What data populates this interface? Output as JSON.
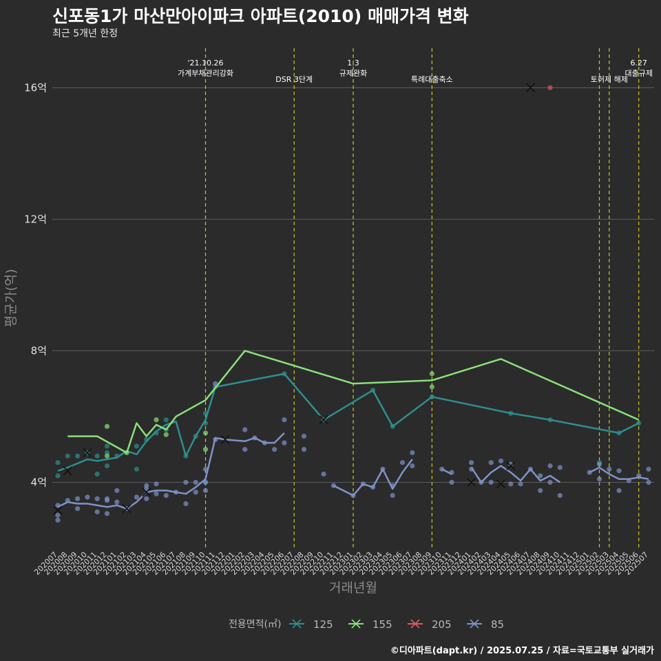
{
  "header": {
    "title": "신포동1가 마산만아이파크 아파트(2010) 매매가격 변화",
    "subtitle": "최근 5개년 한정",
    "caption": "©디아파트(dapt.kr) / 2025.07.25 / 자료=국토교통부 실거래가"
  },
  "colors": {
    "background": "#2b2b2b",
    "grid": "#5c5c5c",
    "vline": "#c8c82a",
    "series_125": "#2f8f8f",
    "series_155": "#8be07a",
    "series_205": "#e05a5a",
    "series_85": "#7f93c9"
  },
  "chart_data": {
    "type": "line",
    "title": "신포동1가 마산만아이파크 아파트(2010) 매매가격 변화",
    "subtitle": "최근 5개년 한정",
    "xlabel": "거래년월",
    "ylabel": "평균가(억)",
    "ylim": [
      2,
      17.2
    ],
    "y_ticks": [
      4,
      8,
      12,
      16
    ],
    "y_tick_labels": [
      "4억",
      "8억",
      "12억",
      "16억"
    ],
    "grid": true,
    "legend_position": "bottom",
    "legend_title": "전용면적(㎡)",
    "months": [
      "202007",
      "202008",
      "202009",
      "202010",
      "202011",
      "202012",
      "202101",
      "202102",
      "202103",
      "202104",
      "202105",
      "202106",
      "202107",
      "202108",
      "202109",
      "202110",
      "202111",
      "202112",
      "202201",
      "202202",
      "202203",
      "202204",
      "202205",
      "202206",
      "202207",
      "202208",
      "202209",
      "202210",
      "202211",
      "202212",
      "202301",
      "202302",
      "202303",
      "202304",
      "202305",
      "202306",
      "202307",
      "202308",
      "202309",
      "202310",
      "202311",
      "202312",
      "202401",
      "202402",
      "202403",
      "202404",
      "202405",
      "202406",
      "202407",
      "202408",
      "202409",
      "202410",
      "202411",
      "202412",
      "202501",
      "202502",
      "202503",
      "202504",
      "202505",
      "202506",
      "202507"
    ],
    "events": [
      {
        "month": "202110",
        "label": "'21.10.26\n가계부채관리강화"
      },
      {
        "month": "202207",
        "label": "DSR 3단계"
      },
      {
        "month": "202301",
        "label": "1.3\n규제완화"
      },
      {
        "month": "202309",
        "label": "특례대출축소"
      },
      {
        "month": "202502",
        "label": ""
      },
      {
        "month": "202503",
        "label": "토허제 해제"
      },
      {
        "month": "202506",
        "label": "6.27\n대출규제"
      }
    ],
    "series": [
      {
        "name": "125",
        "color": "#2f8f8f",
        "line": [
          [
            "202007",
            4.35
          ],
          [
            "202008",
            4.45
          ],
          [
            "202010",
            4.7
          ],
          [
            "202011",
            4.65
          ],
          [
            "202012",
            4.7
          ],
          [
            "202101",
            4.75
          ],
          [
            "202102",
            4.95
          ],
          [
            "202103",
            4.85
          ],
          [
            "202104",
            5.25
          ],
          [
            "202105",
            5.55
          ],
          [
            "202106",
            5.75
          ],
          [
            "202107",
            5.85
          ],
          [
            "202108",
            4.8
          ],
          [
            "202109",
            5.4
          ],
          [
            "202110",
            5.9
          ],
          [
            "202111",
            6.9
          ],
          [
            "202206",
            7.3
          ],
          [
            "202210",
            5.9
          ],
          [
            "202303",
            6.8
          ],
          [
            "202305",
            5.7
          ],
          [
            "202309",
            6.6
          ],
          [
            "202405",
            6.1
          ],
          [
            "202409",
            5.9
          ],
          [
            "202504",
            5.5
          ],
          [
            "202506",
            5.8
          ]
        ],
        "points": [
          [
            "202007",
            4.6
          ],
          [
            "202007",
            4.2
          ],
          [
            "202008",
            4.8
          ],
          [
            "202009",
            4.8
          ],
          [
            "202010",
            4.9
          ],
          [
            "202011",
            4.8
          ],
          [
            "202011",
            4.25
          ],
          [
            "202012",
            4.9
          ],
          [
            "202012",
            4.5
          ],
          [
            "202012",
            5.1
          ],
          [
            "202101",
            4.8
          ],
          [
            "202103",
            4.4
          ],
          [
            "202103",
            5.1
          ],
          [
            "202104",
            5.3
          ],
          [
            "202105",
            5.5
          ],
          [
            "202106",
            5.9
          ],
          [
            "202106",
            5.6
          ],
          [
            "202108",
            4.8
          ],
          [
            "202109",
            5.4
          ],
          [
            "202110",
            5.8
          ],
          [
            "202110",
            6.1
          ],
          [
            "202110",
            4.0
          ],
          [
            "202111",
            6.9
          ],
          [
            "202206",
            7.3
          ],
          [
            "202210",
            5.9
          ],
          [
            "202303",
            6.8
          ],
          [
            "202305",
            5.7
          ],
          [
            "202309",
            6.6
          ],
          [
            "202405",
            6.1
          ],
          [
            "202409",
            5.9
          ],
          [
            "202502",
            4.6
          ],
          [
            "202504",
            5.5
          ],
          [
            "202506",
            5.8
          ]
        ],
        "crosses": [
          [
            "202008",
            4.35
          ],
          [
            "202010",
            4.9
          ],
          [
            "202210",
            5.9
          ]
        ]
      },
      {
        "name": "155",
        "color": "#8be07a",
        "line": [
          [
            "202008",
            5.4
          ],
          [
            "202011",
            5.4
          ],
          [
            "202102",
            4.9
          ],
          [
            "202103",
            5.8
          ],
          [
            "202104",
            5.4
          ],
          [
            "202105",
            5.75
          ],
          [
            "202106",
            5.6
          ],
          [
            "202107",
            6.0
          ],
          [
            "202110",
            6.5
          ],
          [
            "202202",
            8.0
          ],
          [
            "202301",
            7.0
          ],
          [
            "202309",
            7.1
          ],
          [
            "202404",
            7.75
          ],
          [
            "202506",
            5.9
          ]
        ],
        "points": [
          [
            "202012",
            5.7
          ],
          [
            "202012",
            4.8
          ],
          [
            "202102",
            4.9
          ],
          [
            "202105",
            5.9
          ],
          [
            "202106",
            5.45
          ],
          [
            "202110",
            5.5
          ],
          [
            "202110",
            5.0
          ],
          [
            "202309",
            6.9
          ],
          [
            "202309",
            7.3
          ]
        ],
        "crosses": []
      },
      {
        "name": "205",
        "color": "#e05a5a",
        "line": [],
        "points": [
          [
            "202409",
            16.0
          ]
        ],
        "crosses": [
          [
            "202407",
            16.0
          ]
        ]
      },
      {
        "name": "85",
        "color": "#7f93c9",
        "line": [
          [
            "202007",
            3.25
          ],
          [
            "202008",
            3.4
          ],
          [
            "202009",
            3.35
          ],
          [
            "202010",
            3.35
          ],
          [
            "202011",
            3.3
          ],
          [
            "202012",
            3.25
          ],
          [
            "202101",
            3.3
          ],
          [
            "202102",
            3.2
          ],
          [
            "202103",
            3.4
          ],
          [
            "202104",
            3.7
          ],
          [
            "202105",
            3.75
          ],
          [
            "202106",
            3.75
          ],
          [
            "202107",
            3.7
          ],
          [
            "202108",
            3.65
          ],
          [
            "202109",
            3.85
          ],
          [
            "202110",
            4.1
          ],
          [
            "202111",
            5.35
          ],
          [
            "202112",
            5.3
          ],
          [
            "202202",
            5.25
          ],
          [
            "202203",
            5.35
          ],
          [
            "202204",
            5.2
          ],
          [
            "202205",
            5.2
          ],
          [
            "202206",
            5.5
          ],
          null,
          [
            "202211",
            3.9
          ],
          [
            "202301",
            3.6
          ],
          [
            "202302",
            3.95
          ],
          [
            "202303",
            3.85
          ],
          [
            "202304",
            4.4
          ],
          [
            "202305",
            3.8
          ],
          [
            "202306",
            4.3
          ],
          [
            "202307",
            4.7
          ],
          null,
          [
            "202310",
            4.4
          ],
          [
            "202311",
            4.25
          ],
          null,
          [
            "202401",
            4.45
          ],
          [
            "202402",
            4.0
          ],
          [
            "202403",
            4.3
          ],
          [
            "202404",
            4.5
          ],
          [
            "202405",
            4.3
          ],
          [
            "202406",
            4.05
          ],
          [
            "202407",
            4.4
          ],
          [
            "202408",
            4.05
          ],
          [
            "202409",
            4.2
          ],
          [
            "202410",
            4.0
          ],
          null,
          [
            "202501",
            4.3
          ],
          [
            "202502",
            4.45
          ],
          [
            "202503",
            4.25
          ],
          [
            "202504",
            4.1
          ],
          [
            "202505",
            4.1
          ],
          [
            "202506",
            4.15
          ],
          [
            "202507",
            4.1
          ]
        ],
        "points": [
          [
            "202007",
            3.0
          ],
          [
            "202007",
            2.85
          ],
          [
            "202007",
            3.3
          ],
          [
            "202008",
            3.45
          ],
          [
            "202009",
            3.5
          ],
          [
            "202009",
            3.2
          ],
          [
            "202010",
            3.55
          ],
          [
            "202011",
            3.5
          ],
          [
            "202011",
            3.1
          ],
          [
            "202012",
            3.05
          ],
          [
            "202012",
            3.45
          ],
          [
            "202012",
            3.5
          ],
          [
            "202101",
            3.4
          ],
          [
            "202101",
            3.75
          ],
          [
            "202102",
            3.2
          ],
          [
            "202103",
            3.55
          ],
          [
            "202104",
            3.9
          ],
          [
            "202104",
            3.5
          ],
          [
            "202104",
            3.8
          ],
          [
            "202105",
            3.95
          ],
          [
            "202105",
            3.65
          ],
          [
            "202106",
            3.6
          ],
          [
            "202107",
            3.7
          ],
          [
            "202108",
            3.35
          ],
          [
            "202108",
            4.0
          ],
          [
            "202109",
            4.0
          ],
          [
            "202109",
            3.7
          ],
          [
            "202110",
            4.0
          ],
          [
            "202110",
            4.4
          ],
          [
            "202110",
            3.75
          ],
          [
            "202111",
            7.0
          ],
          [
            "202111",
            5.3
          ],
          [
            "202202",
            5.6
          ],
          [
            "202202",
            5.0
          ],
          [
            "202203",
            5.35
          ],
          [
            "202204",
            5.2
          ],
          [
            "202205",
            5.0
          ],
          [
            "202206",
            5.9
          ],
          [
            "202206",
            5.2
          ],
          [
            "202208",
            5.4
          ],
          [
            "202208",
            5.0
          ],
          [
            "202210",
            4.25
          ],
          [
            "202211",
            3.9
          ],
          [
            "202301",
            3.6
          ],
          [
            "202302",
            3.95
          ],
          [
            "202303",
            3.85
          ],
          [
            "202304",
            4.4
          ],
          [
            "202305",
            3.6
          ],
          [
            "202305",
            3.9
          ],
          [
            "202306",
            4.6
          ],
          [
            "202307",
            4.5
          ],
          [
            "202307",
            4.9
          ],
          [
            "202310",
            4.4
          ],
          [
            "202311",
            4.0
          ],
          [
            "202311",
            4.3
          ],
          [
            "202401",
            4.6
          ],
          [
            "202401",
            4.4
          ],
          [
            "202402",
            4.0
          ],
          [
            "202403",
            4.6
          ],
          [
            "202403",
            4.0
          ],
          [
            "202404",
            4.65
          ],
          [
            "202405",
            4.55
          ],
          [
            "202405",
            3.95
          ],
          [
            "202406",
            3.95
          ],
          [
            "202407",
            4.4
          ],
          [
            "202408",
            3.75
          ],
          [
            "202408",
            4.2
          ],
          [
            "202409",
            4.5
          ],
          [
            "202409",
            4.0
          ],
          [
            "202410",
            4.45
          ],
          [
            "202410",
            3.6
          ],
          [
            "202501",
            4.3
          ],
          [
            "202502",
            4.55
          ],
          [
            "202502",
            4.1
          ],
          [
            "202503",
            4.4
          ],
          [
            "202504",
            4.35
          ],
          [
            "202504",
            3.75
          ],
          [
            "202505",
            4.05
          ],
          [
            "202506",
            4.2
          ],
          [
            "202507",
            4.4
          ],
          [
            "202507",
            4.0
          ]
        ],
        "crosses": [
          [
            "202007",
            3.15
          ],
          [
            "202102",
            3.2
          ],
          [
            "202104",
            3.7
          ],
          [
            "202112",
            5.3
          ],
          [
            "202401",
            4.0
          ],
          [
            "202404",
            3.95
          ],
          [
            "202405",
            4.5
          ]
        ]
      }
    ]
  }
}
